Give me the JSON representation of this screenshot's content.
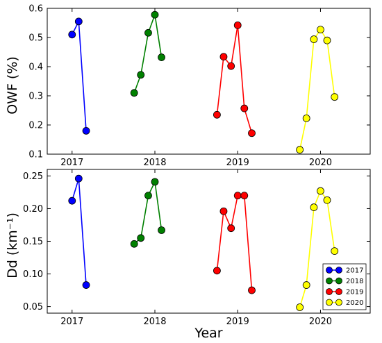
{
  "chart_data": [
    {
      "type": "line",
      "xlabel": "",
      "ylabel": "OWF (%)",
      "xlim": [
        2016.7,
        2020.6
      ],
      "ylim": [
        0.1,
        0.6
      ],
      "xticks": [
        2017,
        2018,
        2019,
        2020
      ],
      "xtick_labels": [
        "2017",
        "2018",
        "2019",
        "2020"
      ],
      "yticks": [
        0.1,
        0.2,
        0.3,
        0.4,
        0.5,
        0.6
      ],
      "ytick_labels": [
        "0.1",
        "0.2",
        "0.3",
        "0.4",
        "0.5",
        "0.6"
      ],
      "series": [
        {
          "name": "2017",
          "color": "#0000ff",
          "x": [
            2017.0,
            2017.08,
            2017.17
          ],
          "y": [
            0.51,
            0.555,
            0.18
          ]
        },
        {
          "name": "2018",
          "color": "#008000",
          "x": [
            2017.75,
            2017.83,
            2017.92,
            2018.0,
            2018.08
          ],
          "y": [
            0.31,
            0.372,
            0.516,
            0.578,
            0.432
          ]
        },
        {
          "name": "2019",
          "color": "#ff0000",
          "x": [
            2018.75,
            2018.83,
            2018.92,
            2019.0,
            2019.08,
            2019.17
          ],
          "y": [
            0.235,
            0.434,
            0.402,
            0.542,
            0.257,
            0.172
          ]
        },
        {
          "name": "2020",
          "color": "#ffff00",
          "x": [
            2019.75,
            2019.83,
            2019.92,
            2020.0,
            2020.08,
            2020.17
          ],
          "y": [
            0.115,
            0.223,
            0.494,
            0.527,
            0.49,
            0.296
          ]
        }
      ],
      "grid": false
    },
    {
      "type": "line",
      "xlabel": "Year",
      "ylabel": "Dd (km⁻¹)",
      "xlim": [
        2016.7,
        2020.6
      ],
      "ylim": [
        0.04,
        0.26
      ],
      "xticks": [
        2017,
        2018,
        2019,
        2020
      ],
      "xtick_labels": [
        "2017",
        "2018",
        "2019",
        "2020"
      ],
      "yticks": [
        0.05,
        0.1,
        0.15,
        0.2,
        0.25
      ],
      "ytick_labels": [
        "0.05",
        "0.10",
        "0.15",
        "0.20",
        "0.25"
      ],
      "series": [
        {
          "name": "2017",
          "color": "#0000ff",
          "x": [
            2017.0,
            2017.08,
            2017.17
          ],
          "y": [
            0.212,
            0.246,
            0.083
          ]
        },
        {
          "name": "2018",
          "color": "#008000",
          "x": [
            2017.75,
            2017.83,
            2017.92,
            2018.0,
            2018.08
          ],
          "y": [
            0.146,
            0.155,
            0.22,
            0.241,
            0.167
          ]
        },
        {
          "name": "2019",
          "color": "#ff0000",
          "x": [
            2018.75,
            2018.83,
            2018.92,
            2019.0,
            2019.08,
            2019.17
          ],
          "y": [
            0.105,
            0.196,
            0.17,
            0.22,
            0.22,
            0.075
          ]
        },
        {
          "name": "2020",
          "color": "#ffff00",
          "x": [
            2019.75,
            2019.83,
            2019.92,
            2020.0,
            2020.08,
            2020.17
          ],
          "y": [
            0.049,
            0.083,
            0.202,
            0.227,
            0.213,
            0.135
          ]
        }
      ],
      "legend": {
        "entries": [
          "2017",
          "2018",
          "2019",
          "2020"
        ],
        "placement": "lower-right"
      },
      "grid": false
    }
  ]
}
